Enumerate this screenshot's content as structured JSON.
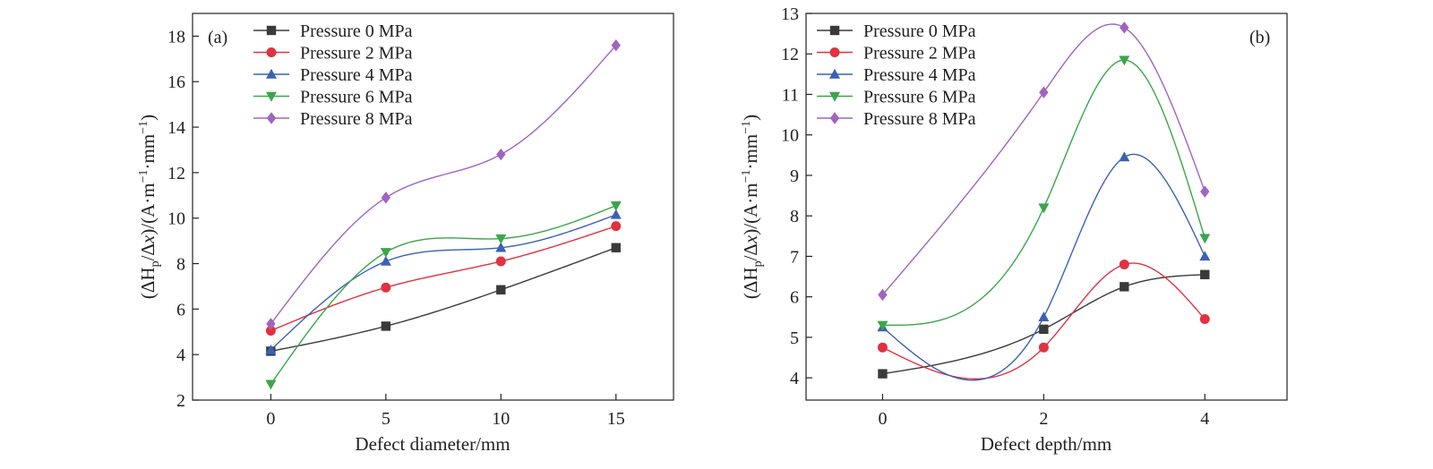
{
  "chart_data": [
    {
      "type": "line",
      "panel_label": "(a)",
      "xlabel": "Defect diameter/mm",
      "ylabel": "(ΔHp/Δx)/(A·m⁻¹·mm⁻¹)",
      "x": [
        0,
        5,
        10,
        15
      ],
      "xlim": [
        -3.4,
        17.5
      ],
      "ylim": [
        2,
        19
      ],
      "xticks": [
        0,
        5,
        10,
        15
      ],
      "yticks": [
        2,
        4,
        6,
        8,
        10,
        12,
        14,
        16,
        18
      ],
      "legend_position": "top-left",
      "series": [
        {
          "name": "Pressure 0 MPa",
          "values": [
            4.15,
            5.25,
            6.85,
            8.7
          ]
        },
        {
          "name": "Pressure 2 MPa",
          "values": [
            5.05,
            6.95,
            8.1,
            9.65
          ]
        },
        {
          "name": "Pressure 4 MPa",
          "values": [
            4.2,
            8.1,
            8.7,
            10.15
          ]
        },
        {
          "name": "Pressure 6 MPa",
          "values": [
            2.7,
            8.5,
            9.1,
            10.55
          ]
        },
        {
          "name": "Pressure 8 MPa",
          "values": [
            5.35,
            10.9,
            12.8,
            17.6
          ]
        }
      ]
    },
    {
      "type": "line",
      "panel_label": "(b)",
      "xlabel": "Defect depth/mm",
      "ylabel": "(ΔHp/Δx)/(A·m⁻¹·mm⁻¹)",
      "x": [
        0,
        2,
        3,
        4
      ],
      "xlim": [
        -0.95,
        5.02
      ],
      "ylim": [
        3.45,
        13
      ],
      "xticks": [
        0,
        2,
        4
      ],
      "yticks": [
        4,
        5,
        6,
        7,
        8,
        9,
        10,
        11,
        12,
        13
      ],
      "legend_position": "top-left",
      "series": [
        {
          "name": "Pressure 0 MPa",
          "values": [
            4.1,
            5.2,
            6.25,
            6.55
          ]
        },
        {
          "name": "Pressure 2 MPa",
          "values": [
            4.75,
            4.75,
            6.8,
            5.45
          ]
        },
        {
          "name": "Pressure 4 MPa",
          "values": [
            5.25,
            5.5,
            9.45,
            7.0
          ]
        },
        {
          "name": "Pressure 6 MPa",
          "values": [
            5.3,
            8.2,
            11.85,
            7.45
          ]
        },
        {
          "name": "Pressure 8 MPa",
          "values": [
            6.05,
            11.05,
            12.65,
            8.6
          ]
        }
      ]
    }
  ],
  "series_colors": [
    "#3a3a3a",
    "#e03240",
    "#3a62b4",
    "#3aa64a",
    "#a064c0"
  ],
  "series_markers": [
    "square",
    "circle",
    "triangle-up",
    "triangle-down",
    "diamond"
  ]
}
